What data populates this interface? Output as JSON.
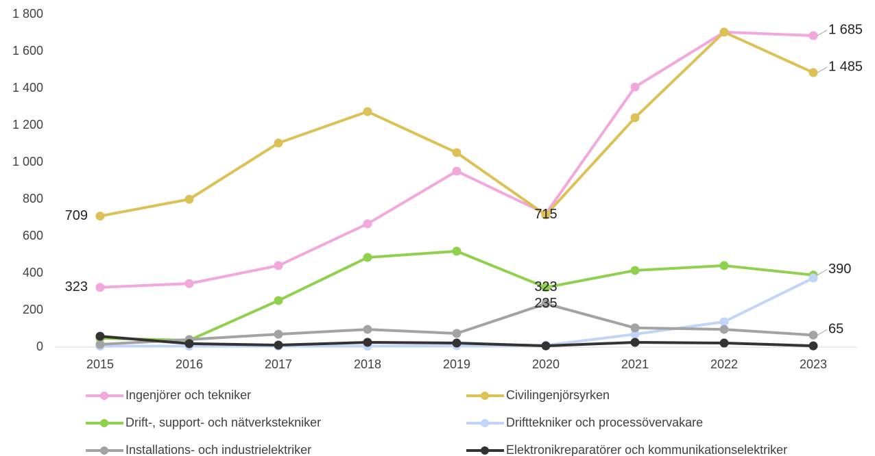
{
  "chart_data": {
    "type": "line",
    "categories": [
      "2015",
      "2016",
      "2017",
      "2018",
      "2019",
      "2020",
      "2021",
      "2022",
      "2023"
    ],
    "ylim": [
      0,
      1800
    ],
    "yticks": [
      0,
      200,
      400,
      600,
      800,
      {
        "value": 1000,
        "label": "1 000"
      },
      {
        "value": 1200,
        "label": "1 200"
      },
      {
        "value": 1400,
        "label": "1 400"
      },
      {
        "value": 1600,
        "label": "1 600"
      },
      {
        "value": 1800,
        "label": "1 800"
      }
    ],
    "series": [
      {
        "name": "Ingenjörer och tekniker",
        "color": "#f2a7dd",
        "values": [
          323,
          344,
          441,
          667,
          952,
          722,
          1407,
          1704,
          1685
        ],
        "value_labels": [
          "323",
          null,
          null,
          null,
          null,
          null,
          null,
          null,
          "1 685"
        ]
      },
      {
        "name": "Civilingenjörsyrken",
        "color": "#dcc156",
        "values": [
          709,
          800,
          1104,
          1274,
          1052,
          715,
          1241,
          1704,
          1485
        ],
        "value_labels": [
          "709",
          null,
          null,
          null,
          null,
          "715",
          null,
          null,
          "1 485"
        ]
      },
      {
        "name": "Drift-, support- och nätverkstekniker",
        "color": "#8fd14f",
        "values": [
          48,
          37,
          252,
          485,
          519,
          323,
          415,
          441,
          390
        ],
        "value_labels": [
          null,
          null,
          null,
          null,
          null,
          "323",
          null,
          null,
          "390"
        ]
      },
      {
        "name": "Drifttekniker och processövervakare",
        "color": "#c2d5f8",
        "values": [
          5,
          5,
          5,
          5,
          8,
          10,
          70,
          137,
          374
        ],
        "value_labels": null
      },
      {
        "name": "Installations- och industrielektriker",
        "color": "#a3a3a3",
        "values": [
          15,
          41,
          70,
          96,
          74,
          235,
          104,
          96,
          65
        ],
        "value_labels": [
          null,
          null,
          null,
          null,
          null,
          "235",
          null,
          null,
          "65"
        ]
      },
      {
        "name": "Elektronikreparatörer och kommunikationselektriker",
        "color": "#333333",
        "values": [
          59,
          19,
          11,
          26,
          22,
          7,
          26,
          22,
          7
        ],
        "value_labels": null
      }
    ]
  }
}
